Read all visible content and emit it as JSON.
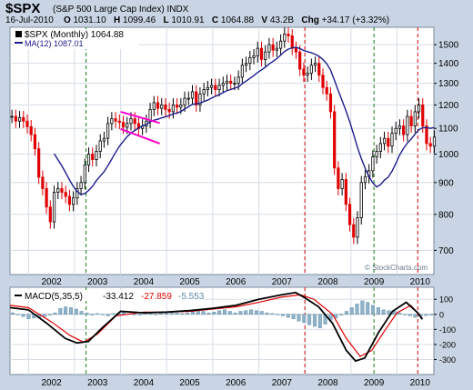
{
  "header": {
    "ticker": "$SPX",
    "name": "(S&P 500 Large Cap Index) INDX",
    "date": "16-Jul-2010",
    "open_label": "O",
    "open": "1031.10",
    "high_label": "H",
    "high": "1099.46",
    "low_label": "L",
    "low": "1010.91",
    "close_label": "C",
    "close": "1064.88",
    "volume_label": "V",
    "volume": "43.2B",
    "chg_label": "Chg",
    "chg": "+34.17 (+3.32%)",
    "watermark": "© StockCharts.com"
  },
  "legend": {
    "price": "$SPX (Monthly) 1064.88",
    "ma": "MA(12) 1087.01"
  },
  "macd_legend": {
    "label": "MACD(5,35,5)",
    "macd": "-33.412",
    "signal": "-27.859",
    "hist": "-5.553"
  },
  "colors": {
    "up": "#000000",
    "down": "#e00000",
    "ma": "#1c1c8c",
    "green_line": "#108010",
    "red_line": "#d00000",
    "trend": "#ff00cc",
    "histogram": "#90b2c8",
    "macd": "#000000",
    "signal": "#e00000"
  },
  "chart_data": [
    {
      "type": "candlestick",
      "title": "$SPX (Monthly)",
      "x_labels": [
        "2002",
        "2003",
        "2004",
        "2005",
        "2006",
        "2007",
        "2008",
        "2009",
        "2010"
      ],
      "y_ticks": [
        700,
        800,
        900,
        1000,
        1100,
        1200,
        1300,
        1400,
        1500
      ],
      "y_scale": "log",
      "ylim": [
        640,
        1600
      ],
      "xlim": [
        2001.6,
        2010.8
      ],
      "grid": true,
      "legend_placement": "top-left",
      "ma_period": 12,
      "vertical_markers": [
        {
          "x": 2003.25,
          "color": "green"
        },
        {
          "x": 2008.0,
          "color": "red"
        },
        {
          "x": 2009.5,
          "color": "green"
        },
        {
          "x": 2010.45,
          "color": "red"
        }
      ],
      "trend_lines": [
        {
          "x1": 2004.0,
          "y1": 1170,
          "x2": 2004.85,
          "y2": 1122
        },
        {
          "x1": 2004.0,
          "y1": 1098,
          "x2": 2004.85,
          "y2": 1040
        }
      ],
      "closes": [
        1150,
        1130,
        1145,
        1130,
        1107,
        1075,
        1020,
        918,
        880,
        822,
        778,
        868,
        880,
        868,
        855,
        830,
        850,
        880,
        900,
        960,
        1000,
        980,
        1010,
        1050,
        1060,
        1120,
        1140,
        1130,
        1125,
        1105,
        1120,
        1140,
        1120,
        1100,
        1110,
        1130,
        1180,
        1210,
        1185,
        1200,
        1180,
        1170,
        1200,
        1190,
        1200,
        1230,
        1230,
        1260,
        1200,
        1250,
        1270,
        1280,
        1290,
        1270,
        1290,
        1300,
        1310,
        1300,
        1300,
        1330,
        1390,
        1400,
        1430,
        1440,
        1480,
        1420,
        1460,
        1500,
        1470,
        1480,
        1520,
        1560,
        1550,
        1480,
        1460,
        1370,
        1340,
        1350,
        1390,
        1400,
        1340,
        1280,
        1250,
        1170,
        950,
        880,
        910,
        830,
        770,
        735,
        790,
        900,
        920,
        940,
        990,
        1010,
        1040,
        1060,
        1030,
        1080,
        1100,
        1110,
        1075,
        1150,
        1110,
        1170,
        1200,
        1110,
        1040,
        1030,
        1065
      ],
      "start_open": 1150,
      "macd": {
        "ylim": [
          -400,
          180
        ],
        "y_ticks": [
          100,
          0,
          -100,
          -200,
          -300
        ],
        "macd_points": [
          [
            2001.6,
            45
          ],
          [
            2002.0,
            30
          ],
          [
            2002.4,
            -60
          ],
          [
            2002.8,
            -160
          ],
          [
            2003.05,
            -190
          ],
          [
            2003.3,
            -180
          ],
          [
            2003.6,
            -90
          ],
          [
            2004.0,
            20
          ],
          [
            2004.5,
            10
          ],
          [
            2005.0,
            15
          ],
          [
            2005.5,
            25
          ],
          [
            2006.0,
            40
          ],
          [
            2006.5,
            60
          ],
          [
            2007.0,
            100
          ],
          [
            2007.5,
            130
          ],
          [
            2007.8,
            145
          ],
          [
            2008.0,
            110
          ],
          [
            2008.3,
            50
          ],
          [
            2008.6,
            -60
          ],
          [
            2008.9,
            -240
          ],
          [
            2009.1,
            -310
          ],
          [
            2009.3,
            -290
          ],
          [
            2009.6,
            -120
          ],
          [
            2009.9,
            20
          ],
          [
            2010.2,
            80
          ],
          [
            2010.45,
            10
          ],
          [
            2010.55,
            -33
          ]
        ],
        "signal_points": [
          [
            2001.6,
            60
          ],
          [
            2002.0,
            45
          ],
          [
            2002.5,
            -50
          ],
          [
            2002.9,
            -140
          ],
          [
            2003.2,
            -185
          ],
          [
            2003.5,
            -130
          ],
          [
            2003.9,
            -10
          ],
          [
            2004.5,
            15
          ],
          [
            2005.0,
            15
          ],
          [
            2005.5,
            20
          ],
          [
            2006.0,
            35
          ],
          [
            2006.5,
            50
          ],
          [
            2007.0,
            80
          ],
          [
            2007.5,
            115
          ],
          [
            2007.9,
            130
          ],
          [
            2008.2,
            100
          ],
          [
            2008.6,
            0
          ],
          [
            2008.9,
            -160
          ],
          [
            2009.2,
            -280
          ],
          [
            2009.45,
            -240
          ],
          [
            2009.75,
            -100
          ],
          [
            2010.0,
            10
          ],
          [
            2010.3,
            60
          ],
          [
            2010.55,
            -28
          ]
        ],
        "hist_samples": [
          10,
          0,
          -15,
          -30,
          -25,
          -20,
          -15,
          -5,
          10,
          40,
          50,
          45,
          35,
          20,
          10,
          -5,
          5,
          0,
          -10,
          5,
          10,
          15,
          5,
          0,
          -5,
          10,
          5,
          0,
          10,
          15,
          15,
          10,
          5,
          10,
          20,
          25,
          20,
          10,
          15,
          25,
          30,
          20,
          10,
          20,
          25,
          30,
          25,
          20,
          10,
          5,
          0,
          -10,
          -20,
          -30,
          -45,
          -55,
          -70,
          -80,
          -90,
          -65,
          -40,
          -25,
          -5,
          20,
          45,
          70,
          90,
          80,
          60,
          45,
          30,
          25,
          20,
          10,
          0,
          -10,
          -20,
          -15,
          -8,
          -5
        ]
      }
    }
  ]
}
